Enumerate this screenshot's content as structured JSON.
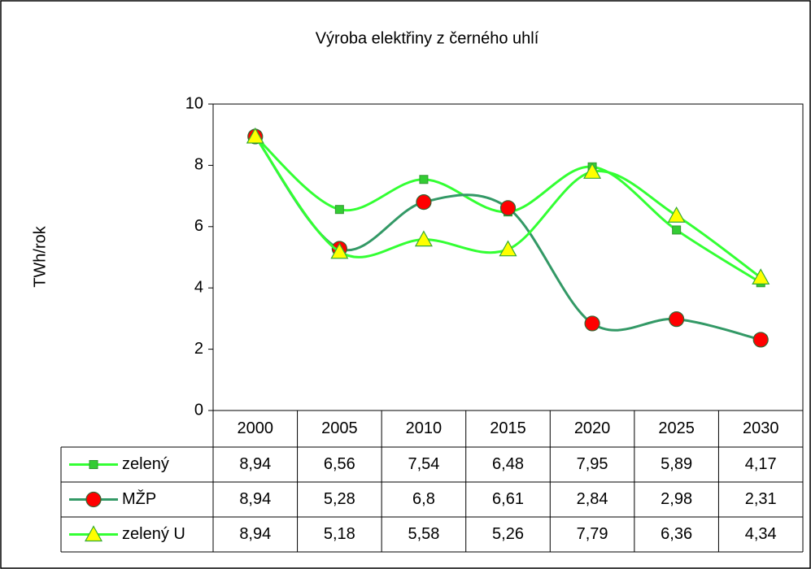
{
  "chart_data": {
    "type": "line",
    "title": "Výroba elektřiny z černého uhlí",
    "y_label": "TWh/rok",
    "categories": [
      "2000",
      "2005",
      "2010",
      "2015",
      "2020",
      "2025",
      "2030"
    ],
    "series": [
      {
        "name": "zelený",
        "color": "#33ff33",
        "marker": "square",
        "marker_color": "#33cc33",
        "values": [
          8.94,
          6.56,
          7.54,
          6.48,
          7.95,
          5.89,
          4.17
        ],
        "value_labels": [
          "8,94",
          "6,56",
          "7,54",
          "6,48",
          "7,95",
          "5,89",
          "4,17"
        ]
      },
      {
        "name": "MŽP",
        "color": "#339966",
        "marker": "circle",
        "marker_color": "#ff0000",
        "values": [
          8.94,
          5.28,
          6.8,
          6.61,
          2.84,
          2.98,
          2.31
        ],
        "value_labels": [
          "8,94",
          "5,28",
          "6,8",
          "6,61",
          "2,84",
          "2,98",
          "2,31"
        ]
      },
      {
        "name": "zelený U",
        "color": "#33ff33",
        "marker": "triangle",
        "marker_color": "#ffff00",
        "values": [
          8.94,
          5.18,
          5.58,
          5.26,
          7.79,
          6.36,
          4.34
        ],
        "value_labels": [
          "8,94",
          "5,18",
          "5,58",
          "5,26",
          "7,79",
          "6,36",
          "4,34"
        ]
      }
    ],
    "ylim": [
      0,
      10
    ],
    "yticks": [
      0,
      2,
      4,
      6,
      8,
      10
    ],
    "grid": false,
    "smooth": true
  }
}
